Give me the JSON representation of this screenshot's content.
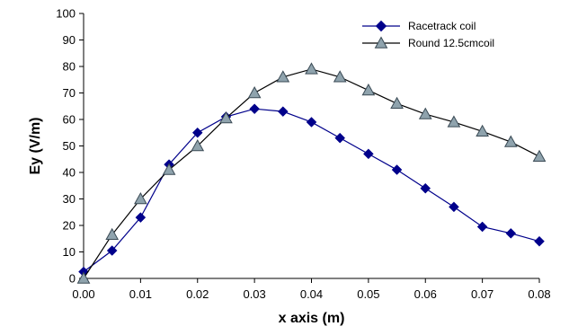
{
  "chart_data": {
    "type": "line",
    "title": "",
    "xlabel": "x axis (m)",
    "ylabel": "Ey (V/m)",
    "xlim": [
      0,
      0.08
    ],
    "ylim": [
      0,
      100
    ],
    "x_ticks": [
      "0.00",
      "0.01",
      "0.02",
      "0.03",
      "0.04",
      "0.05",
      "0.06",
      "0.07",
      "0.08"
    ],
    "y_ticks": [
      "0",
      "10",
      "20",
      "30",
      "40",
      "50",
      "60",
      "70",
      "80",
      "90",
      "100"
    ],
    "grid": false,
    "legend_position": "top-right",
    "x": [
      0,
      0.005,
      0.01,
      0.015,
      0.02,
      0.025,
      0.03,
      0.035,
      0.04,
      0.045,
      0.05,
      0.055,
      0.06,
      0.065,
      0.07,
      0.075,
      0.08
    ],
    "series": [
      {
        "name": "Racetrack coil",
        "marker": "diamond",
        "color": "#00008B",
        "values": [
          2.5,
          10.5,
          23,
          43,
          55,
          61,
          64,
          63,
          59,
          53,
          47,
          41,
          34,
          27,
          19.5,
          17,
          14
        ]
      },
      {
        "name": "Round 12.5cmcoil",
        "marker": "triangle",
        "color": "#000000",
        "marker_fill": "#8FA3AD",
        "values": [
          0,
          16.5,
          30,
          41,
          50,
          60.5,
          70,
          76,
          79,
          76,
          71,
          66,
          62,
          59,
          55.5,
          51.5,
          46
        ]
      }
    ]
  }
}
